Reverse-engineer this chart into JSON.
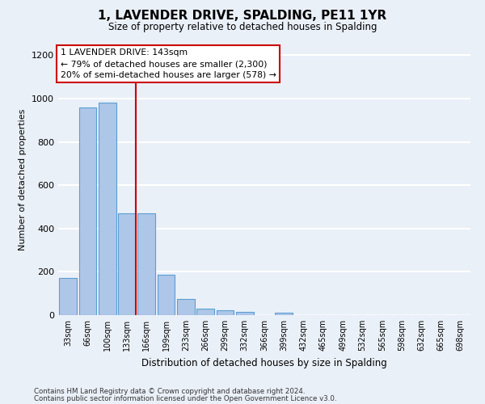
{
  "title": "1, LAVENDER DRIVE, SPALDING, PE11 1YR",
  "subtitle": "Size of property relative to detached houses in Spalding",
  "xlabel": "Distribution of detached houses by size in Spalding",
  "ylabel": "Number of detached properties",
  "bar_labels": [
    "33sqm",
    "66sqm",
    "100sqm",
    "133sqm",
    "166sqm",
    "199sqm",
    "233sqm",
    "266sqm",
    "299sqm",
    "332sqm",
    "366sqm",
    "399sqm",
    "432sqm",
    "465sqm",
    "499sqm",
    "532sqm",
    "565sqm",
    "598sqm",
    "632sqm",
    "665sqm",
    "698sqm"
  ],
  "bar_values": [
    170,
    960,
    980,
    470,
    470,
    185,
    75,
    28,
    22,
    15,
    0,
    12,
    0,
    0,
    0,
    0,
    0,
    0,
    0,
    0,
    0
  ],
  "bar_color": "#aec6e8",
  "bar_edge_color": "#5a9fd4",
  "vline_x_index": 3,
  "vline_color": "#cc0000",
  "ylim": [
    0,
    1250
  ],
  "yticks": [
    0,
    200,
    400,
    600,
    800,
    1000,
    1200
  ],
  "annotation_text": "1 LAVENDER DRIVE: 143sqm\n← 79% of detached houses are smaller (2,300)\n20% of semi-detached houses are larger (578) →",
  "annotation_box_color": "#ffffff",
  "annotation_box_edge": "#cc0000",
  "footer_line1": "Contains HM Land Registry data © Crown copyright and database right 2024.",
  "footer_line2": "Contains public sector information licensed under the Open Government Licence v3.0.",
  "bg_color": "#eaf0f8",
  "plot_bg_color": "#eaf0f8",
  "grid_color": "#ffffff"
}
